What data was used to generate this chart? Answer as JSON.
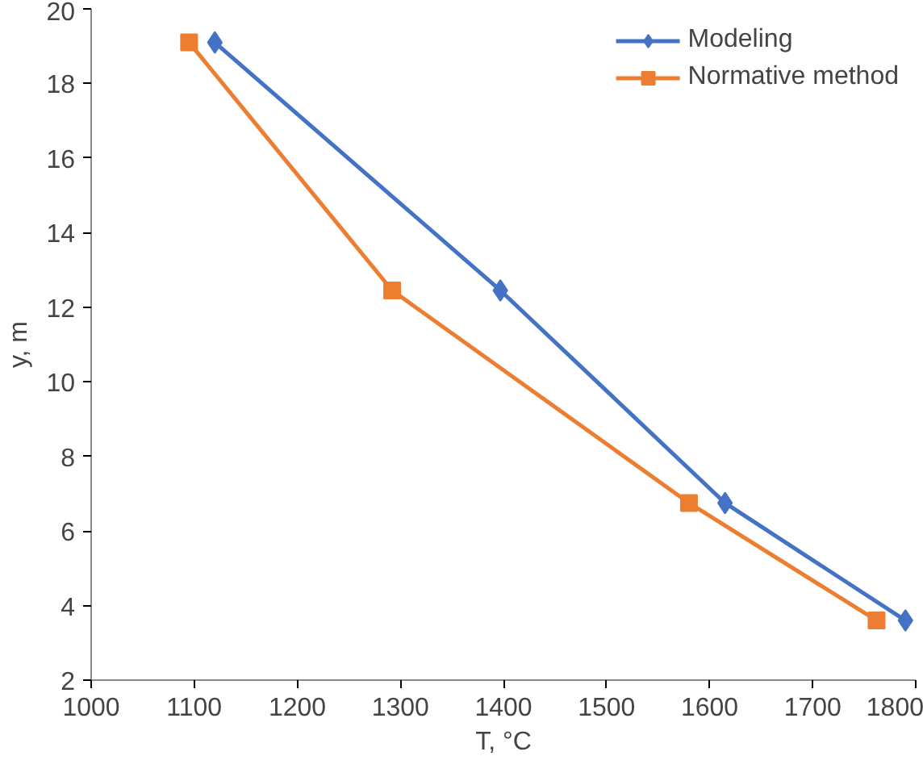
{
  "chart_data": {
    "type": "line",
    "xlabel": "T, °C",
    "ylabel": "y, m",
    "series": [
      {
        "name": "Modeling",
        "color": "#4472c4",
        "marker": "diamond",
        "x": [
          1120,
          1397,
          1615,
          1790
        ],
        "values": [
          19.1,
          12.45,
          6.75,
          3.6
        ]
      },
      {
        "name": "Normative method",
        "color": "#ed7d31",
        "marker": "square",
        "x": [
          1095,
          1292,
          1580,
          1762
        ],
        "values": [
          19.1,
          12.45,
          6.75,
          3.6
        ]
      }
    ],
    "xlim": [
      1000,
      1800
    ],
    "xticks": [
      1000,
      1100,
      1200,
      1300,
      1400,
      1500,
      1600,
      1700,
      1800
    ],
    "ylim": [
      2,
      20
    ],
    "yticks": [
      2,
      4,
      6,
      8,
      10,
      12,
      14,
      16,
      18,
      20
    ],
    "grid": false,
    "legend": "top right"
  }
}
